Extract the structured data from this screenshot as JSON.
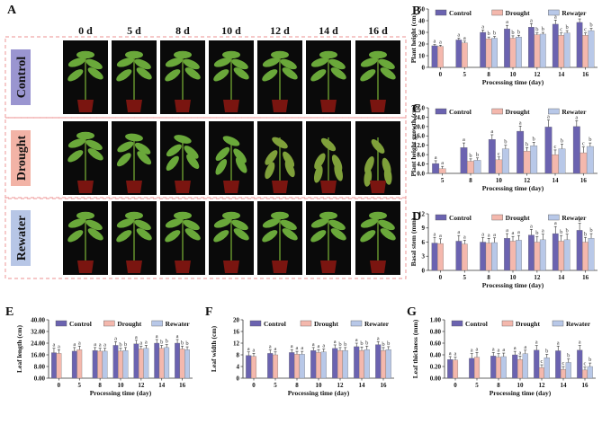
{
  "photo_panel": {
    "label": "A",
    "days": [
      "0 d",
      "5 d",
      "8 d",
      "10 d",
      "12 d",
      "14 d",
      "16 d"
    ],
    "rows": [
      {
        "label": "Control",
        "color": "#9a95d0"
      },
      {
        "label": "Drought",
        "color": "#f2b3a6"
      },
      {
        "label": "Rewater",
        "color": "#b7c6e6"
      }
    ]
  },
  "colors": {
    "control": "#6b63b0",
    "drought": "#f4b8ad",
    "rewater": "#b8c8e8"
  },
  "chart_data": [
    {
      "id": "B",
      "label": "B",
      "type": "bar",
      "ylabel": "Plant height (cm)",
      "xlabel": "Processing time (day)",
      "categories": [
        "0",
        "5",
        "8",
        "10",
        "12",
        "14",
        "16"
      ],
      "yticks": [
        "0",
        "10",
        "20",
        "30",
        "40",
        "50"
      ],
      "ylim": [
        0,
        50
      ],
      "legend": [
        "Control",
        "Drought",
        "Rewater"
      ],
      "series": [
        {
          "name": "Control",
          "values": [
            18.5,
            23.5,
            30.0,
            33.0,
            34.5,
            37.0,
            38.5
          ],
          "err": [
            1.0,
            1.5,
            2.0,
            3.0,
            3.0,
            3.5,
            3.0
          ],
          "letters": [
            "a",
            "a",
            "a",
            "a",
            "a",
            "a",
            "a"
          ]
        },
        {
          "name": "Drought",
          "values": [
            18.0,
            21.0,
            24.5,
            25.0,
            28.0,
            27.5,
            27.5
          ],
          "err": [
            1.0,
            1.5,
            1.5,
            2.0,
            1.5,
            2.0,
            2.0
          ],
          "letters": [
            "a",
            "a",
            "b",
            "b",
            "b",
            "c",
            "c"
          ]
        },
        {
          "name": "Rewater",
          "values": [
            null,
            null,
            25.0,
            26.0,
            28.5,
            29.5,
            31.5
          ],
          "err": [
            0,
            0,
            1.5,
            1.5,
            1.5,
            2.0,
            2.0
          ],
          "letters": [
            "",
            "",
            "b",
            "b",
            "b",
            "b",
            "b"
          ]
        }
      ]
    },
    {
      "id": "C",
      "label": "C",
      "type": "bar",
      "ylabel": "Plant height growth (cm)",
      "xlabel": "Processing time (day)",
      "categories": [
        "5",
        "8",
        "10",
        "12",
        "14",
        "16"
      ],
      "yticks": [
        "0.0",
        "4.0",
        "8.0",
        "12.0",
        "16.0",
        "20.0",
        "24.0",
        "28.0"
      ],
      "ylim": [
        0,
        28
      ],
      "legend": [
        "Control",
        "Drought",
        "Rewater"
      ],
      "series": [
        {
          "name": "Control",
          "values": [
            4.2,
            11.0,
            14.5,
            18.0,
            19.8,
            20.0
          ],
          "err": [
            1.2,
            2.0,
            2.0,
            2.2,
            3.0,
            2.5
          ],
          "letters": [
            "a",
            "a",
            "a",
            "a",
            "a",
            "a"
          ]
        },
        {
          "name": "Drought",
          "values": [
            2.0,
            5.2,
            5.8,
            9.5,
            8.0,
            8.8
          ],
          "err": [
            1.0,
            1.0,
            1.2,
            1.5,
            2.0,
            2.5
          ],
          "letters": [
            "a",
            "b",
            "c",
            "b",
            "c",
            "c"
          ]
        },
        {
          "name": "Rewater",
          "values": [
            null,
            5.6,
            10.5,
            11.8,
            10.5,
            11.5
          ],
          "err": [
            0,
            1.0,
            1.5,
            1.5,
            2.0,
            1.5
          ],
          "letters": [
            "",
            "b",
            "b",
            "b",
            "b",
            "b"
          ]
        }
      ]
    },
    {
      "id": "D",
      "label": "D",
      "type": "bar",
      "ylabel": "Basal stem (mm)",
      "xlabel": "Processing time (day)",
      "categories": [
        "0",
        "5",
        "8",
        "10",
        "12",
        "14",
        "16"
      ],
      "yticks": [
        "0",
        "3",
        "6",
        "9",
        "12"
      ],
      "ylim": [
        0,
        12
      ],
      "legend": [
        "Control",
        "Drought",
        "Rewater"
      ],
      "series": [
        {
          "name": "Control",
          "values": [
            5.8,
            6.2,
            6.0,
            6.8,
            7.5,
            7.8,
            8.5
          ],
          "err": [
            1.2,
            1.2,
            1.0,
            1.0,
            1.2,
            1.5,
            1.5
          ],
          "letters": [
            "a",
            "a",
            "a",
            "a",
            "a",
            "a",
            "a"
          ]
        },
        {
          "name": "Drought",
          "values": [
            5.7,
            5.6,
            5.8,
            6.2,
            6.0,
            6.2,
            6.0
          ],
          "err": [
            1.0,
            0.8,
            1.0,
            1.0,
            1.2,
            1.2,
            1.0
          ],
          "letters": [
            "a",
            "a",
            "a",
            "a",
            "b",
            "b",
            "b"
          ]
        },
        {
          "name": "Rewater",
          "values": [
            null,
            null,
            5.9,
            6.4,
            6.5,
            6.5,
            6.8
          ],
          "err": [
            0,
            0,
            1.0,
            1.0,
            1.2,
            1.2,
            1.0
          ],
          "letters": [
            "",
            "",
            "a",
            "a",
            "a",
            "b",
            "b"
          ]
        }
      ]
    },
    {
      "id": "E",
      "label": "E",
      "type": "bar",
      "ylabel": "Leaf length (cm)",
      "xlabel": "Processing time (day)",
      "categories": [
        "0",
        "5",
        "8",
        "10",
        "12",
        "14",
        "16"
      ],
      "yticks": [
        "0.00",
        "8.00",
        "16.00",
        "24.00",
        "32.00",
        "40.00"
      ],
      "ylim": [
        0,
        40
      ],
      "legend": [
        "Control",
        "Drought",
        "Rewater"
      ],
      "series": [
        {
          "name": "Control",
          "values": [
            17.5,
            18.5,
            19.0,
            22.5,
            23.5,
            24.0,
            24.0
          ],
          "err": [
            3.0,
            2.5,
            2.0,
            2.5,
            2.5,
            2.5,
            2.5
          ],
          "letters": [
            "a",
            "a",
            "a",
            "a",
            "a",
            "a",
            "a"
          ]
        },
        {
          "name": "Drought",
          "values": [
            17.0,
            19.5,
            18.5,
            18.5,
            20.0,
            20.5,
            20.0
          ],
          "err": [
            2.5,
            2.5,
            2.0,
            2.0,
            2.0,
            2.0,
            2.0
          ],
          "letters": [
            "a",
            "a",
            "a",
            "b",
            "a",
            "b",
            "b"
          ]
        },
        {
          "name": "Rewater",
          "values": [
            null,
            null,
            18.5,
            19.0,
            20.5,
            21.0,
            19.5
          ],
          "err": [
            0,
            0,
            2.0,
            2.0,
            2.0,
            2.0,
            2.0
          ],
          "letters": [
            "",
            "",
            "a",
            "b",
            "a",
            "b",
            "b"
          ]
        }
      ]
    },
    {
      "id": "F",
      "label": "F",
      "type": "bar",
      "ylabel": "Leaf width (cm)",
      "xlabel": "Processing time (day)",
      "categories": [
        "0",
        "5",
        "8",
        "10",
        "12",
        "14",
        "16"
      ],
      "yticks": [
        "0",
        "4",
        "8",
        "12",
        "16",
        "20"
      ],
      "ylim": [
        0,
        20
      ],
      "legend": [
        "Control",
        "Drought",
        "Rewater"
      ],
      "series": [
        {
          "name": "Control",
          "values": [
            7.8,
            8.5,
            8.8,
            9.5,
            10.2,
            10.8,
            11.5
          ],
          "err": [
            1.2,
            1.2,
            1.0,
            1.0,
            1.2,
            1.2,
            1.0
          ],
          "letters": [
            "a",
            "a",
            "a",
            "a",
            "a",
            "a",
            "a"
          ]
        },
        {
          "name": "Drought",
          "values": [
            7.5,
            8.0,
            8.2,
            8.8,
            9.5,
            9.5,
            9.5
          ],
          "err": [
            1.0,
            1.0,
            1.0,
            1.0,
            1.0,
            1.2,
            1.0
          ],
          "letters": [
            "a",
            "a",
            "a",
            "a",
            "b",
            "b",
            "b"
          ]
        },
        {
          "name": "Rewater",
          "values": [
            null,
            null,
            8.2,
            9.0,
            9.5,
            9.8,
            9.8
          ],
          "err": [
            0,
            0,
            1.0,
            1.0,
            1.0,
            1.2,
            1.0
          ],
          "letters": [
            "",
            "",
            "a",
            "a",
            "b",
            "b",
            "b"
          ]
        }
      ]
    },
    {
      "id": "G",
      "label": "G",
      "type": "bar",
      "ylabel": "Leaf thickness (mm)",
      "xlabel": "Processing time (day)",
      "categories": [
        "0",
        "5",
        "8",
        "10",
        "12",
        "14",
        "16"
      ],
      "yticks": [
        "0.00",
        "0.20",
        "0.40",
        "0.60",
        "0.80",
        "1.00"
      ],
      "ylim": [
        0,
        1.0
      ],
      "legend": [
        "Control",
        "Drought",
        "Rewater"
      ],
      "series": [
        {
          "name": "Control",
          "values": [
            0.32,
            0.34,
            0.38,
            0.4,
            0.48,
            0.47,
            0.48
          ],
          "err": [
            0.05,
            0.08,
            0.06,
            0.06,
            0.08,
            0.08,
            0.08
          ],
          "letters": [
            "a",
            "a",
            "a",
            "a",
            "a",
            "a",
            "a"
          ]
        },
        {
          "name": "Drought",
          "values": [
            0.31,
            0.36,
            0.36,
            0.32,
            0.18,
            0.15,
            0.14
          ],
          "err": [
            0.05,
            0.08,
            0.06,
            0.06,
            0.05,
            0.05,
            0.05
          ],
          "letters": [
            "a",
            "a",
            "a",
            "a",
            "c",
            "c",
            "c"
          ]
        },
        {
          "name": "Rewater",
          "values": [
            null,
            null,
            0.37,
            0.42,
            0.35,
            0.27,
            0.2
          ],
          "err": [
            0,
            0,
            0.06,
            0.06,
            0.06,
            0.06,
            0.06
          ],
          "letters": [
            "",
            "",
            "a",
            "a",
            "b",
            "b",
            "b"
          ]
        }
      ]
    }
  ]
}
